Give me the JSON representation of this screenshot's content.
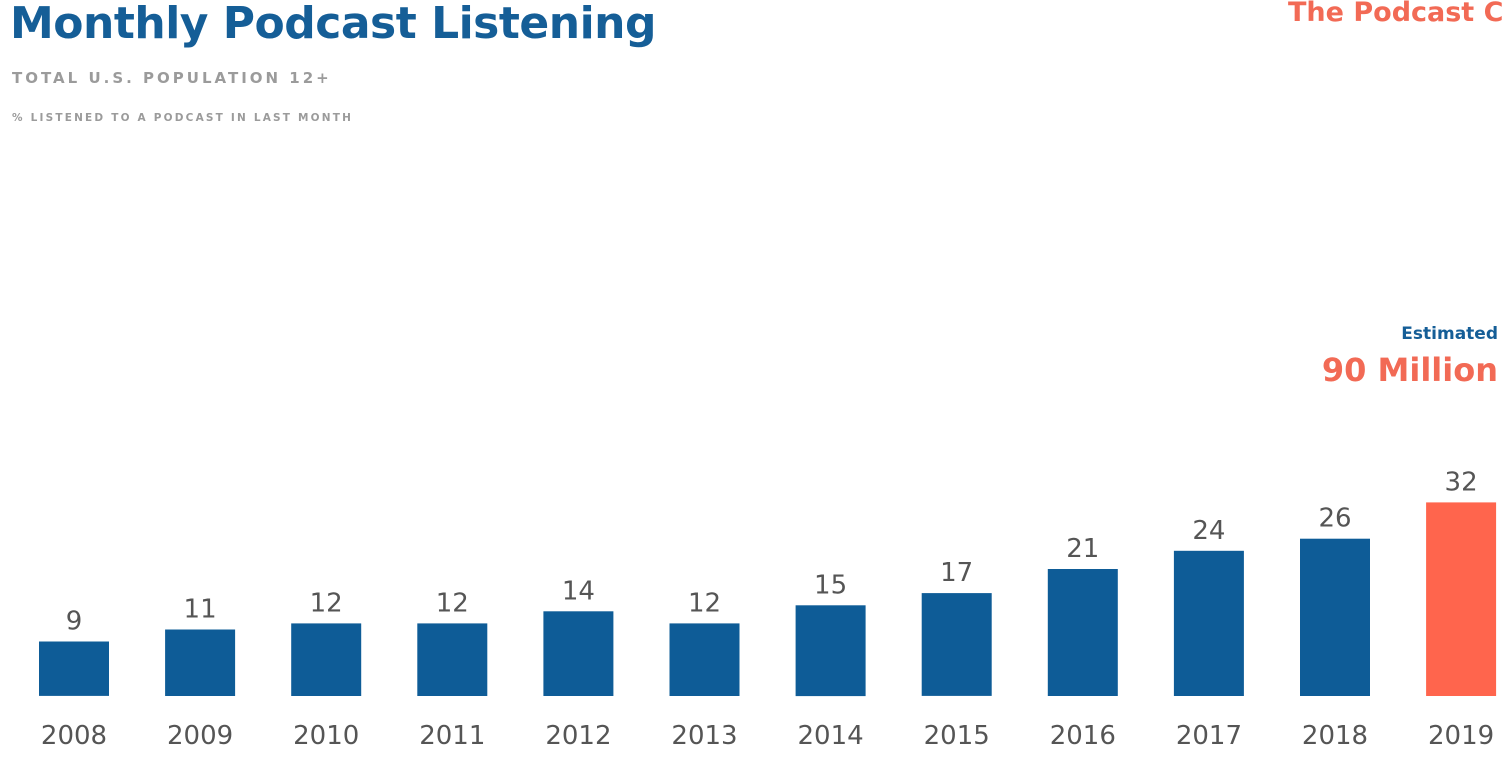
{
  "brand": {
    "text": "The Podcast C"
  },
  "chart_data": {
    "type": "bar",
    "title": "Monthly Podcast Listening",
    "subtitle": "TOTAL U.S. POPULATION 12+",
    "metric_label": "% LISTENED TO A PODCAST IN LAST MONTH",
    "categories": [
      "2008",
      "2009",
      "2010",
      "2011",
      "2012",
      "2013",
      "2014",
      "2015",
      "2016",
      "2017",
      "2018",
      "2019"
    ],
    "values": [
      9,
      11,
      12,
      12,
      14,
      12,
      15,
      17,
      21,
      24,
      26,
      32
    ],
    "data_labels": [
      "9",
      "11",
      "12",
      "12",
      "14",
      "12",
      "15",
      "17",
      "21",
      "24",
      "26",
      "32"
    ],
    "highlight_index": 11,
    "colors": {
      "bar": "#0e5c97",
      "highlight": "#ff654d"
    },
    "annotation": {
      "label": "Estimated",
      "value": "90 Million"
    },
    "ylim": [
      0,
      32
    ],
    "grid": false,
    "legend": "none"
  }
}
